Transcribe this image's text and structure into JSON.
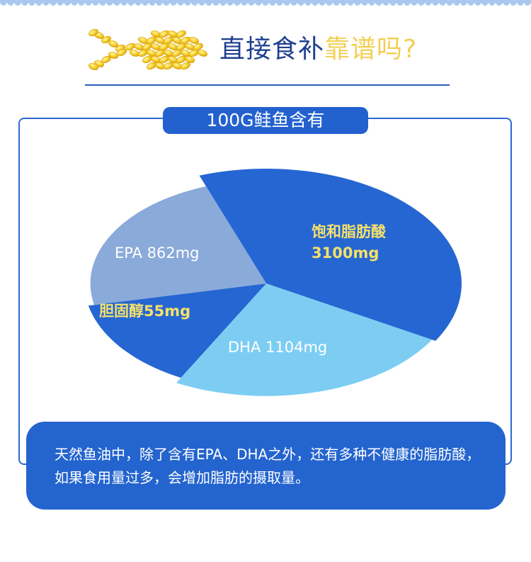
{
  "header": {
    "title_dark": "直接食补",
    "title_highlight": "靠谱吗?"
  },
  "panel": {
    "title": "100G鲑鱼含有"
  },
  "chart_data": {
    "type": "pie",
    "title": "100G鲑鱼含有",
    "unit": "mg",
    "slices": [
      {
        "name": "饱和脂肪酸",
        "value": 3100,
        "value_label": "3100mg",
        "color": "#2566d2",
        "label_color": "#f5e06a"
      },
      {
        "name": "DHA",
        "value": 1104,
        "value_label": "1104mg",
        "color": "#7dcdf3",
        "label_color": "#ffffff"
      },
      {
        "name": "胆固醇",
        "value": 55,
        "value_label": "55mg",
        "color": "#2566d2",
        "label_color": "#f5e06a"
      },
      {
        "name": "EPA",
        "value": 862,
        "value_label": "862mg",
        "color": "#8aaad9",
        "label_color": "#ffffff"
      }
    ],
    "labels": {
      "saturated": {
        "line1": "饱和脂肪酸",
        "line2": "3100mg"
      },
      "dha": "DHA 1104mg",
      "cholesterol": "胆固醇55mg",
      "epa": "EPA 862mg"
    }
  },
  "note": {
    "text": "天然鱼油中，除了含有EPA、DHA之外，还有多种不健康的脂肪酸，如果食用量过多，会增加脂肪的摄取量。"
  },
  "colors": {
    "primary": "#2464cf",
    "headline_dark": "#1f3f8f",
    "headline_gold": "#f3cf52"
  }
}
